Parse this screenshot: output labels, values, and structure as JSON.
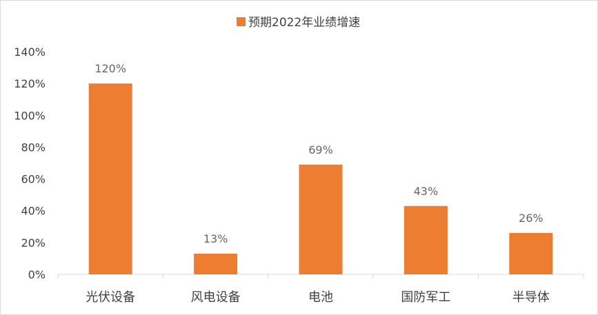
{
  "chart_data": {
    "type": "bar",
    "categories": [
      "光伏设备",
      "风电设备",
      "电池",
      "国防军工",
      "半导体"
    ],
    "series": [
      {
        "name": "预期2022年业绩增速",
        "values": [
          120,
          13,
          69,
          43,
          26
        ]
      }
    ],
    "data_labels": [
      "120%",
      "13%",
      "69%",
      "43%",
      "26%"
    ],
    "y_ticks": [
      "0%",
      "20%",
      "40%",
      "60%",
      "80%",
      "100%",
      "120%",
      "140%"
    ],
    "ylim": [
      0,
      140
    ],
    "y_unit": "%",
    "grid": false,
    "legend_position": "top-center",
    "bar_color": "#ED7D31"
  }
}
